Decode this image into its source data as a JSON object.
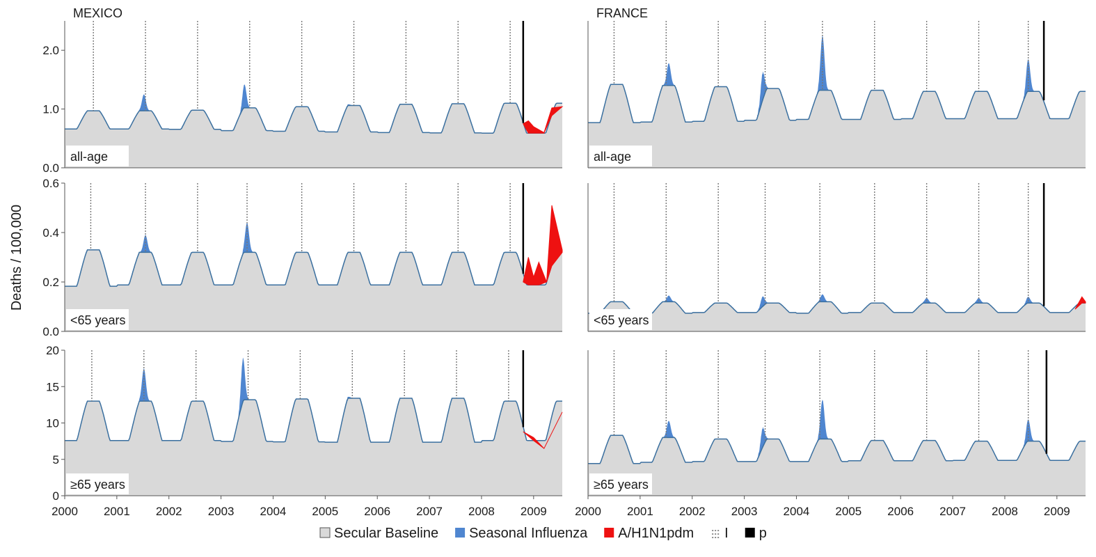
{
  "figure": {
    "ylabel": "Deaths / 100,000",
    "legend": [
      {
        "label": "Secular Baseline",
        "color": "#d9d9d9",
        "kind": "box"
      },
      {
        "label": "Seasonal Influenza",
        "color": "#4f86d0",
        "kind": "box"
      },
      {
        "label": "A/H1N1pdm",
        "color": "#ee1111",
        "kind": "box"
      },
      {
        "label": "I",
        "color": "#8a8a8a",
        "kind": "dotted"
      },
      {
        "label": "p",
        "color": "#000000",
        "kind": "box"
      }
    ],
    "colors": {
      "baseline_fill": "#d9d9d9",
      "baseline_line": "#3a6f9f",
      "seasonal": "#4f86d0",
      "pandemic": "#ee1111",
      "onset_line": "#000000",
      "peak_line": "#777777"
    }
  },
  "chart_data": [
    {
      "type": "area",
      "country": "MEXICO",
      "title": "MEXICO",
      "panel_label": "all-age",
      "x_ticks": [
        "2000",
        "2001",
        "2002",
        "2003",
        "2004",
        "2005",
        "2006",
        "2007",
        "2008",
        "2009"
      ],
      "xlim": [
        2000,
        2009.55
      ],
      "ylim": [
        0,
        2.5
      ],
      "y_ticks": [
        "0.0",
        "1.0",
        "2.0"
      ],
      "y_tick_values": [
        0,
        1.0,
        2.0
      ],
      "baseline": {
        "mean": 0.77,
        "peaks": [
          0.97,
          0.97,
          0.98,
          1.02,
          1.04,
          1.06,
          1.08,
          1.09,
          1.1
        ]
      },
      "seasonal_peaks": [
        {
          "x": 2001.52,
          "y": 1.25
        },
        {
          "x": 2003.45,
          "y": 1.42
        },
        {
          "x": 2004.55,
          "y": 1.05
        },
        {
          "x": 2005.45,
          "y": 1.08
        },
        {
          "x": 2008.55,
          "y": 1.1
        }
      ],
      "peak_markers": [
        2000.55,
        2001.55,
        2002.55,
        2003.55,
        2004.55,
        2005.55,
        2006.55,
        2007.55,
        2008.55
      ],
      "onset": 2008.8,
      "pandemic": [
        {
          "x": 2008.8,
          "y": 0.75
        },
        {
          "x": 2008.9,
          "y": 0.8
        },
        {
          "x": 2009.0,
          "y": 0.7
        },
        {
          "x": 2009.2,
          "y": 0.6
        },
        {
          "x": 2009.35,
          "y": 1.02
        },
        {
          "x": 2009.55,
          "y": 1.04
        }
      ]
    },
    {
      "type": "area",
      "country": "MEXICO",
      "title": "",
      "panel_label": "<65 years",
      "x_ticks": [
        "2000",
        "2001",
        "2002",
        "2003",
        "2004",
        "2005",
        "2006",
        "2007",
        "2008",
        "2009"
      ],
      "xlim": [
        2000,
        2009.55
      ],
      "ylim": [
        0,
        0.6
      ],
      "y_ticks": [
        "0.0",
        "0.2",
        "0.4",
        "0.6"
      ],
      "y_tick_values": [
        0,
        0.2,
        0.4,
        0.6
      ],
      "baseline": {
        "mean": 0.235,
        "peaks": [
          0.33,
          0.32,
          0.32,
          0.32,
          0.32,
          0.32,
          0.32,
          0.32,
          0.32
        ]
      },
      "seasonal_peaks": [
        {
          "x": 2001.55,
          "y": 0.39
        },
        {
          "x": 2003.5,
          "y": 0.44
        }
      ],
      "peak_markers": [
        2000.5,
        2001.55,
        2002.55,
        2003.5,
        2004.55,
        2005.55,
        2006.55,
        2007.55,
        2008.55
      ],
      "onset": 2008.8,
      "pandemic": [
        {
          "x": 2008.8,
          "y": 0.2
        },
        {
          "x": 2008.9,
          "y": 0.3
        },
        {
          "x": 2009.0,
          "y": 0.22
        },
        {
          "x": 2009.1,
          "y": 0.28
        },
        {
          "x": 2009.25,
          "y": 0.2
        },
        {
          "x": 2009.35,
          "y": 0.51
        },
        {
          "x": 2009.55,
          "y": 0.33
        }
      ]
    },
    {
      "type": "area",
      "country": "MEXICO",
      "title": "",
      "panel_label": "≥65 years",
      "x_ticks": [
        "2000",
        "2001",
        "2002",
        "2003",
        "2004",
        "2005",
        "2006",
        "2007",
        "2008",
        "2009"
      ],
      "xlim": [
        2000,
        2009.55
      ],
      "ylim": [
        0,
        20
      ],
      "y_ticks": [
        "0",
        "5",
        "10",
        "15",
        "20"
      ],
      "y_tick_values": [
        0,
        5,
        10,
        15,
        20
      ],
      "baseline": {
        "mean": 9.5,
        "peaks": [
          13.0,
          13.0,
          13.0,
          13.2,
          13.3,
          13.4,
          13.4,
          13.4,
          13.0
        ]
      },
      "seasonal_peaks": [
        {
          "x": 2001.52,
          "y": 17.5
        },
        {
          "x": 2003.42,
          "y": 19.0
        },
        {
          "x": 2005.45,
          "y": 13.6
        },
        {
          "x": 2008.5,
          "y": 13.0
        }
      ],
      "peak_markers": [
        2000.52,
        2001.52,
        2002.52,
        2003.52,
        2004.52,
        2005.52,
        2006.52,
        2007.52,
        2008.52
      ],
      "onset": 2008.8,
      "pandemic": [
        {
          "x": 2008.8,
          "y": 8.8
        },
        {
          "x": 2009.0,
          "y": 8.0
        },
        {
          "x": 2009.2,
          "y": 6.5
        },
        {
          "x": 2009.55,
          "y": 11.5
        }
      ]
    },
    {
      "type": "area",
      "country": "FRANCE",
      "title": "FRANCE",
      "panel_label": "all-age",
      "x_ticks": [
        "2000",
        "2001",
        "2002",
        "2003",
        "2004",
        "2005",
        "2006",
        "2007",
        "2008",
        "2009"
      ],
      "xlim": [
        2000,
        2009.55
      ],
      "ylim": [
        0,
        2.5
      ],
      "y_ticks": [],
      "y_tick_values": [],
      "baseline": {
        "mean": 1.0,
        "peaks": [
          1.42,
          1.4,
          1.38,
          1.35,
          1.32,
          1.32,
          1.3,
          1.3,
          1.3
        ]
      },
      "seasonal_peaks": [
        {
          "x": 2001.55,
          "y": 1.78
        },
        {
          "x": 2003.35,
          "y": 1.6
        },
        {
          "x": 2004.5,
          "y": 2.25
        },
        {
          "x": 2008.45,
          "y": 1.85
        }
      ],
      "peak_markers": [
        2000.5,
        2001.5,
        2002.5,
        2003.4,
        2004.5,
        2005.5,
        2006.5,
        2007.5,
        2008.45
      ],
      "onset": 2008.75,
      "pandemic": []
    },
    {
      "type": "area",
      "country": "FRANCE",
      "title": "",
      "panel_label": "<65 years",
      "x_ticks": [
        "2000",
        "2001",
        "2002",
        "2003",
        "2004",
        "2005",
        "2006",
        "2007",
        "2008",
        "2009"
      ],
      "xlim": [
        2000,
        2009.55
      ],
      "ylim": [
        0,
        0.6
      ],
      "y_ticks": [],
      "y_tick_values": [],
      "baseline": {
        "mean": 0.09,
        "peaks": [
          0.12,
          0.12,
          0.115,
          0.115,
          0.12,
          0.115,
          0.115,
          0.115,
          0.115
        ]
      },
      "seasonal_peaks": [
        {
          "x": 2001.55,
          "y": 0.145
        },
        {
          "x": 2003.35,
          "y": 0.14
        },
        {
          "x": 2004.5,
          "y": 0.15
        },
        {
          "x": 2006.5,
          "y": 0.135
        },
        {
          "x": 2007.5,
          "y": 0.135
        },
        {
          "x": 2008.45,
          "y": 0.14
        }
      ],
      "peak_markers": [
        2000.5,
        2001.5,
        2002.5,
        2003.4,
        2004.45,
        2005.5,
        2006.5,
        2007.5,
        2008.45
      ],
      "onset": 2008.75,
      "pandemic": [
        {
          "x": 2009.35,
          "y": 0.09
        },
        {
          "x": 2009.48,
          "y": 0.14
        },
        {
          "x": 2009.55,
          "y": 0.12
        }
      ]
    },
    {
      "type": "area",
      "country": "FRANCE",
      "title": "",
      "panel_label": "≥65 years",
      "x_ticks": [
        "2000",
        "2001",
        "2002",
        "2003",
        "2004",
        "2005",
        "2006",
        "2007",
        "2008",
        "2009"
      ],
      "xlim": [
        2000,
        2009.55
      ],
      "ylim": [
        0,
        20
      ],
      "y_ticks": [],
      "y_tick_values": [],
      "baseline": {
        "mean": 5.8,
        "peaks": [
          8.3,
          8.0,
          7.8,
          7.8,
          7.8,
          7.6,
          7.6,
          7.5,
          7.5
        ]
      },
      "seasonal_peaks": [
        {
          "x": 2001.55,
          "y": 10.3
        },
        {
          "x": 2003.35,
          "y": 9.2
        },
        {
          "x": 2004.5,
          "y": 13.2
        },
        {
          "x": 2008.45,
          "y": 10.5
        }
      ],
      "peak_markers": [
        2000.5,
        2001.5,
        2002.5,
        2003.4,
        2004.45,
        2005.5,
        2006.5,
        2007.5,
        2008.45
      ],
      "onset": 2008.8,
      "pandemic": []
    }
  ]
}
